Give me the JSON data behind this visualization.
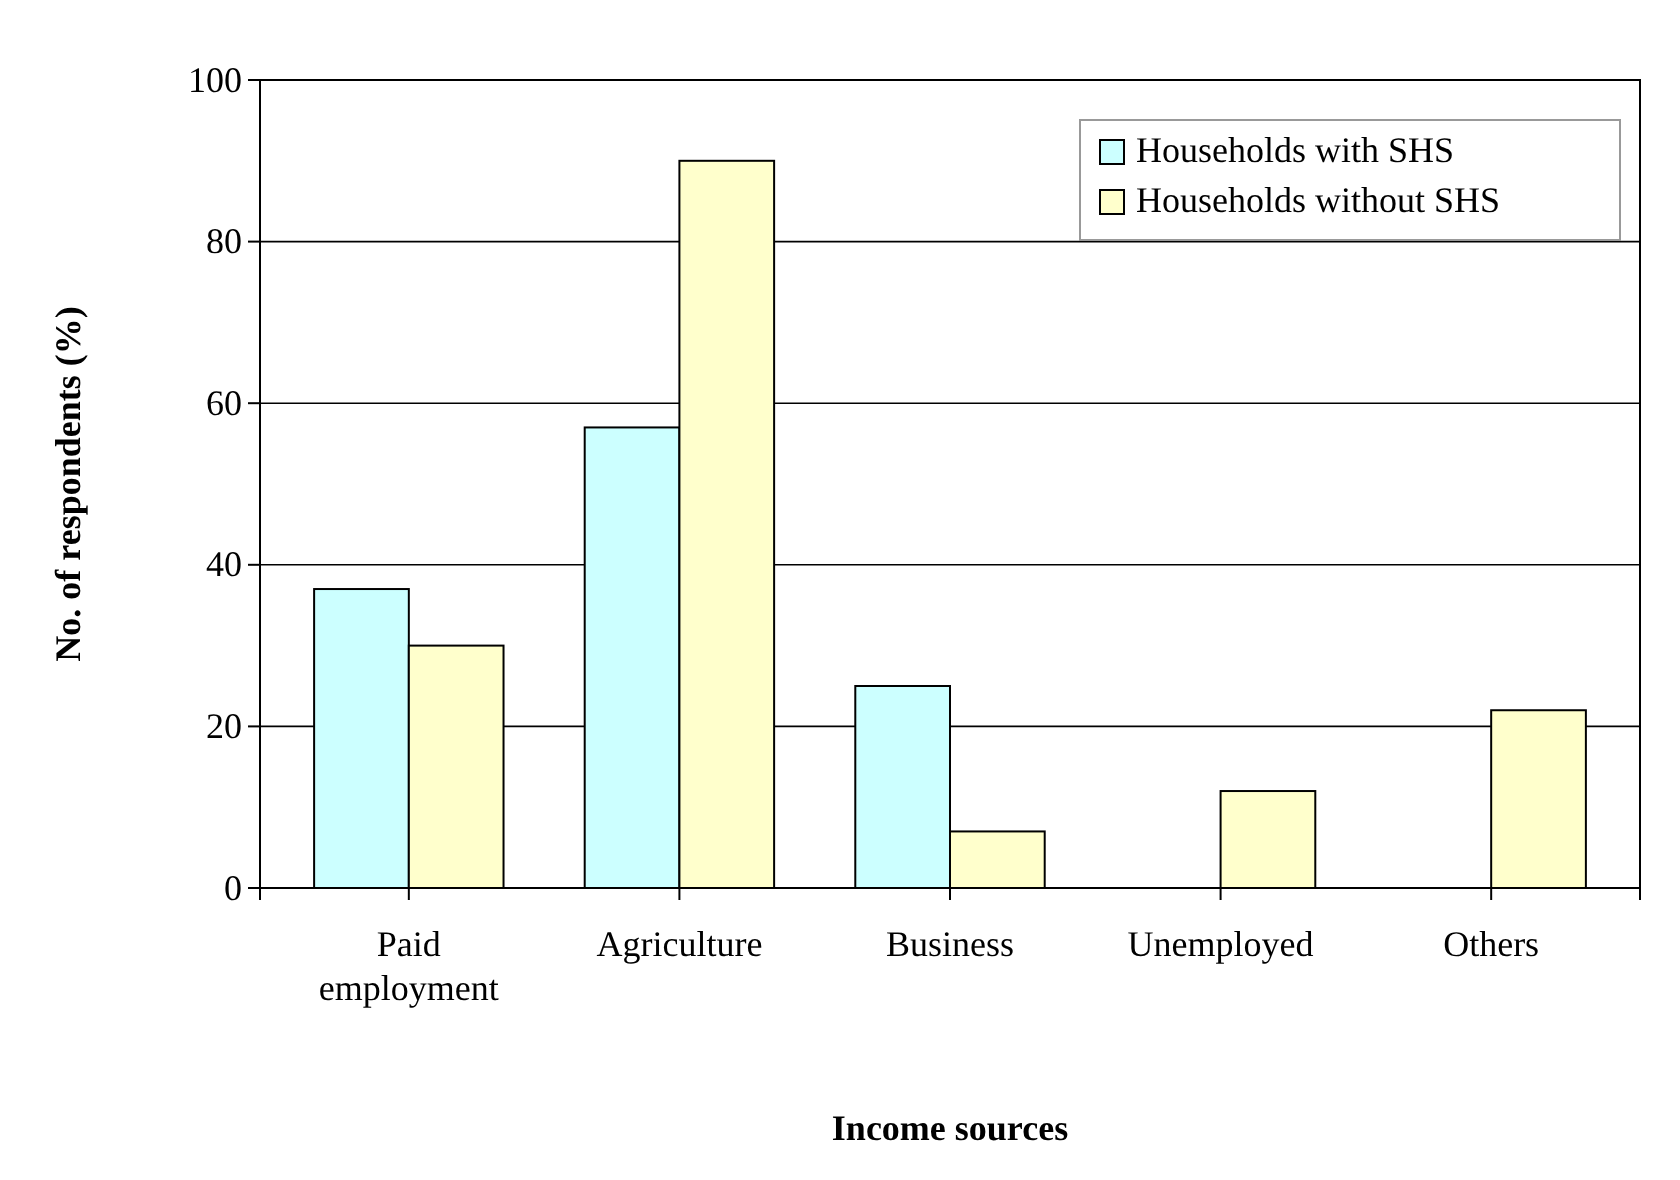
{
  "chart_data": {
    "type": "bar",
    "xlabel": "Income sources",
    "ylabel": "No. of respondents (%)",
    "categories": [
      "Paid employment",
      "Agriculture",
      "Business",
      "Unemployed",
      "Others"
    ],
    "series": [
      {
        "name": "Households with SHS",
        "color": "#ccffff",
        "values": [
          37,
          57,
          25,
          0,
          0
        ]
      },
      {
        "name": "Households without SHS",
        "color": "#ffffcc",
        "values": [
          30,
          90,
          7,
          12,
          22
        ]
      }
    ],
    "ylim": [
      0,
      100
    ],
    "yticks": [
      0,
      20,
      40,
      60,
      80,
      100
    ],
    "grid": "y",
    "legend": "top right"
  }
}
